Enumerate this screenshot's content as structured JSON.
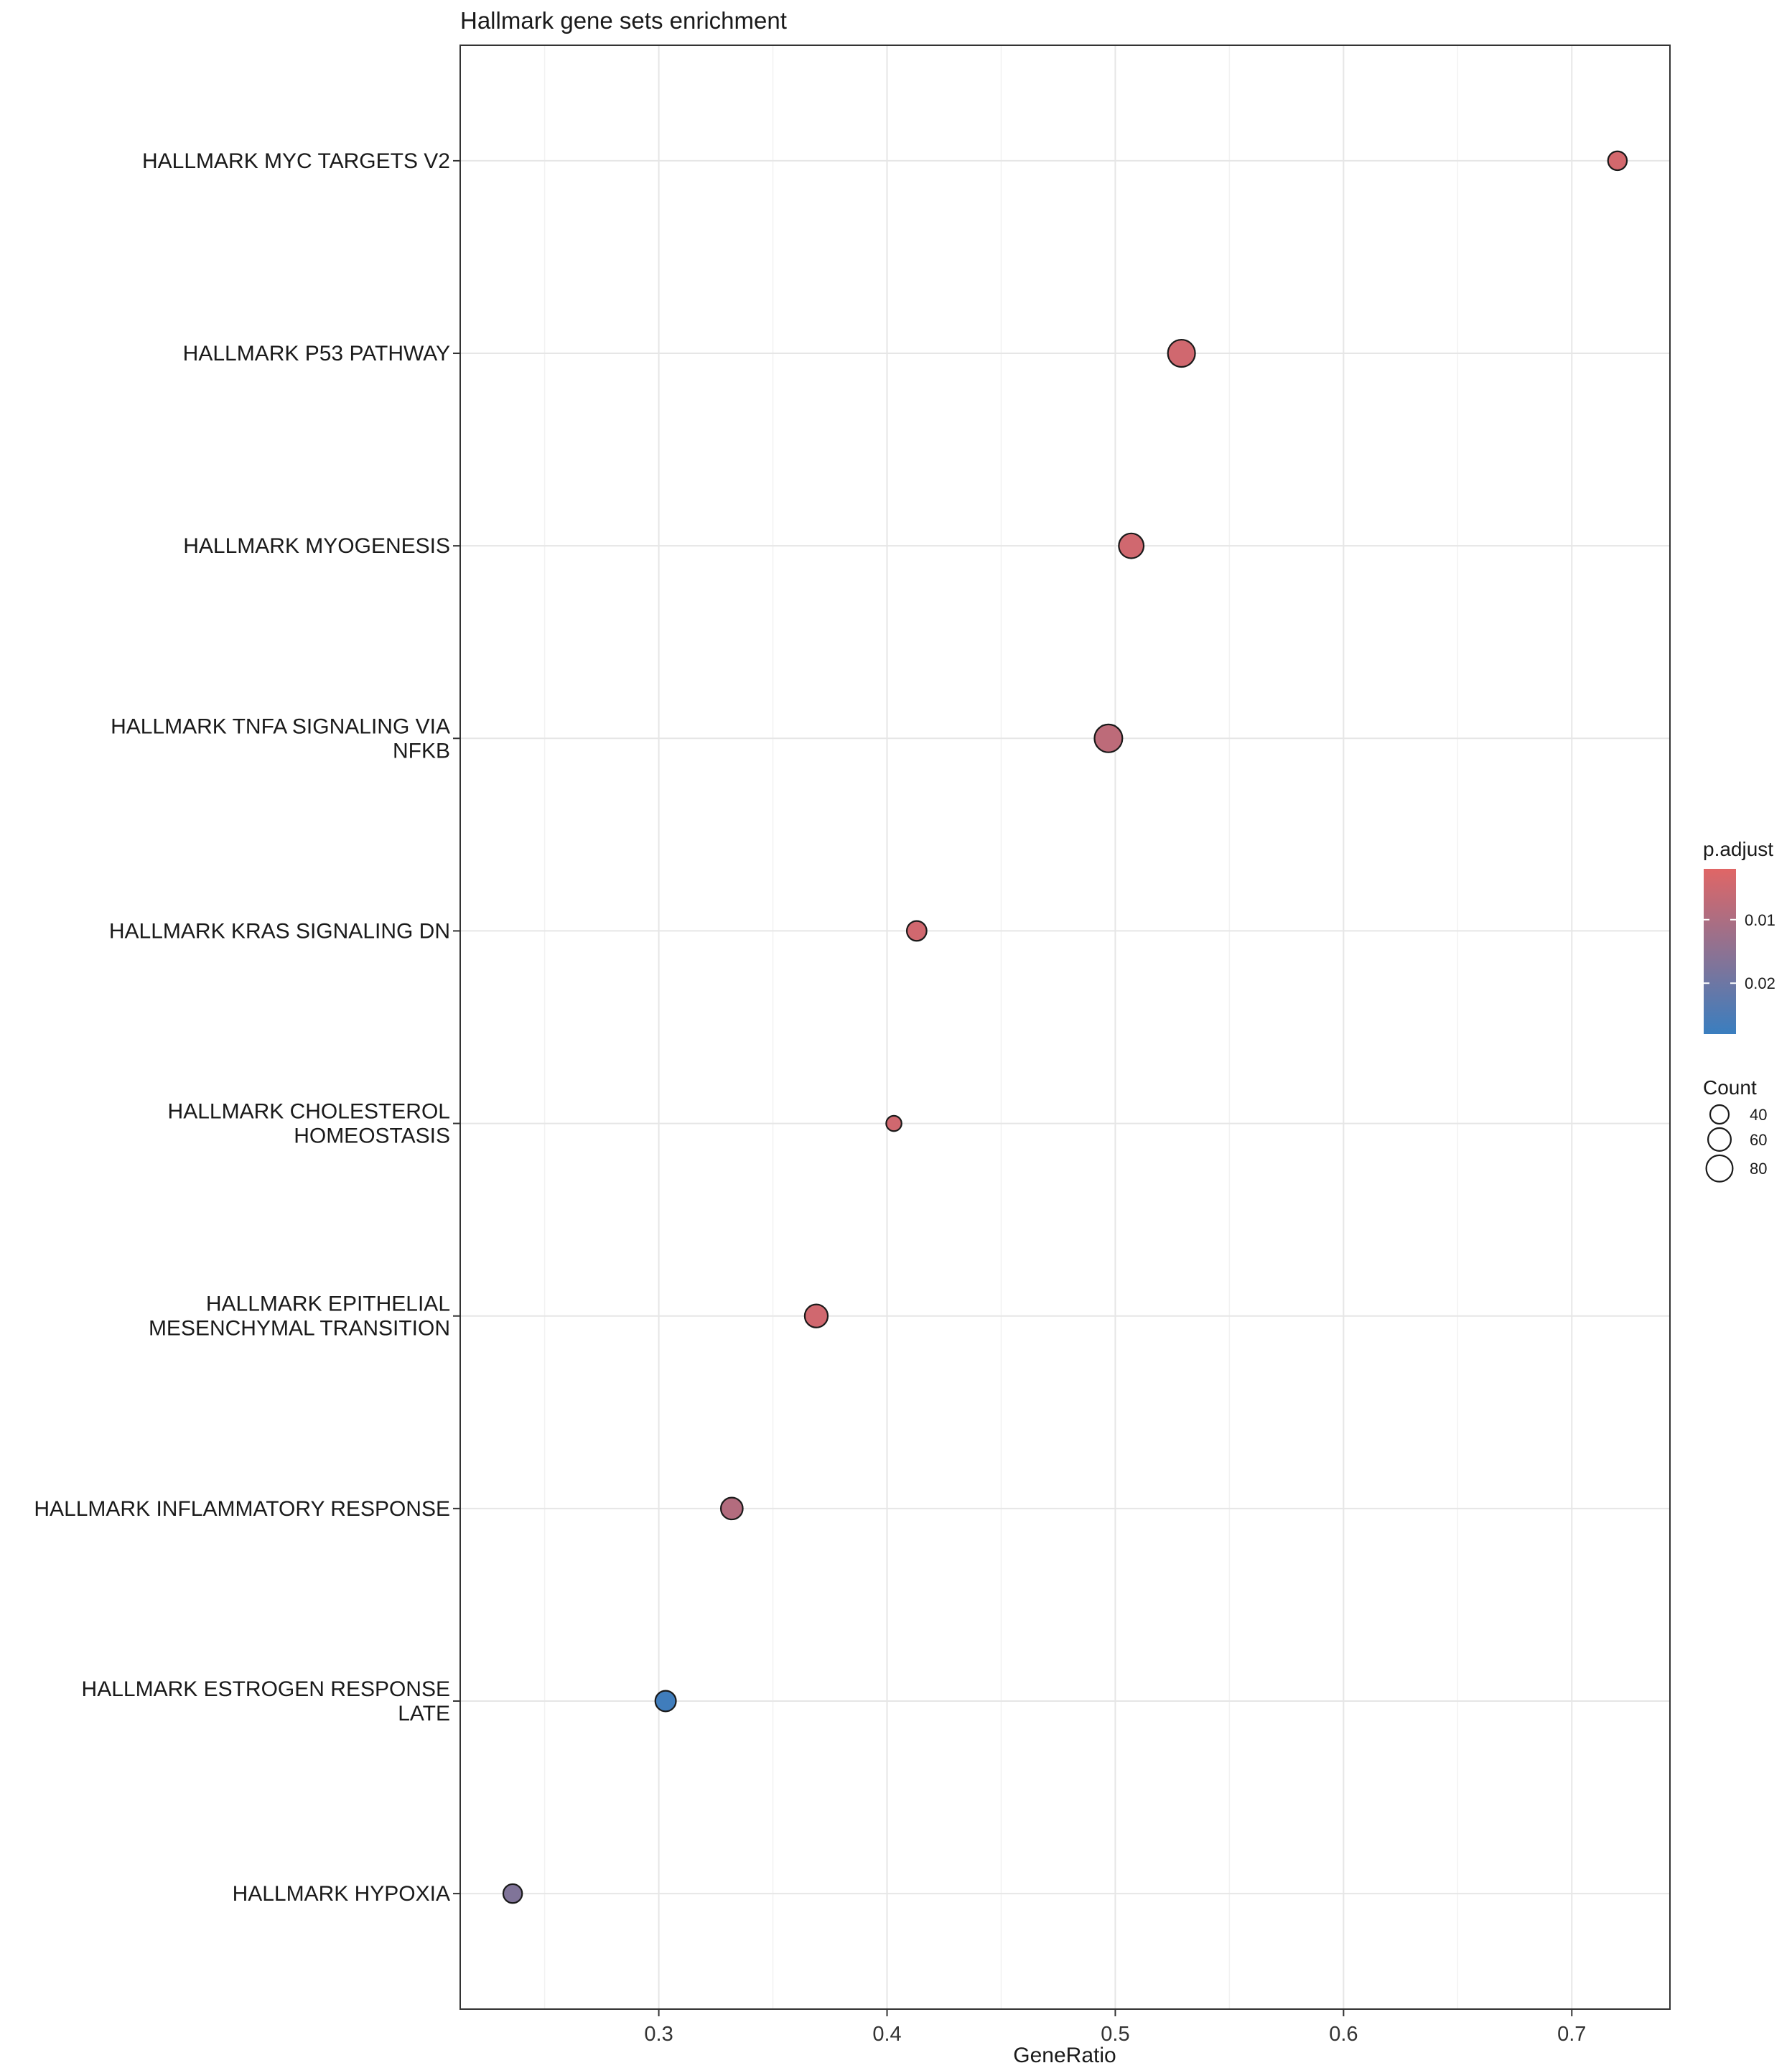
{
  "chart_data": {
    "type": "scatter",
    "title": "Hallmark gene sets enrichment",
    "xlabel": "GeneRatio",
    "ylabel": "",
    "xlim": [
      0.213,
      0.743
    ],
    "xticks": [
      0.3,
      0.4,
      0.5,
      0.6,
      0.7
    ],
    "xtick_labels": [
      "0.3",
      "0.4",
      "0.5",
      "0.6",
      "0.7"
    ],
    "grid": true,
    "points": [
      {
        "term": "HALLMARK MYC TARGETS V2",
        "label_lines": [
          "HALLMARK MYC TARGETS V2"
        ],
        "gene_ratio": 0.72,
        "count": 41,
        "p_adjust": 0.004
      },
      {
        "term": "HALLMARK P53 PATHWAY",
        "label_lines": [
          "HALLMARK P53 PATHWAY"
        ],
        "gene_ratio": 0.529,
        "count": 85,
        "p_adjust": 0.0045
      },
      {
        "term": "HALLMARK MYOGENESIS",
        "label_lines": [
          "HALLMARK MYOGENESIS"
        ],
        "gene_ratio": 0.507,
        "count": 71,
        "p_adjust": 0.0045
      },
      {
        "term": "HALLMARK TNFA SIGNALING VIA NFKB",
        "label_lines": [
          "HALLMARK TNFA SIGNALING VIA",
          "NFKB"
        ],
        "gene_ratio": 0.497,
        "count": 89,
        "p_adjust": 0.0075
      },
      {
        "term": "HALLMARK KRAS SIGNALING DN",
        "label_lines": [
          "HALLMARK KRAS SIGNALING DN"
        ],
        "gene_ratio": 0.413,
        "count": 45,
        "p_adjust": 0.0045
      },
      {
        "term": "HALLMARK CHOLESTEROL HOMEOSTASIS",
        "label_lines": [
          "HALLMARK CHOLESTEROL",
          "HOMEOSTASIS"
        ],
        "gene_ratio": 0.403,
        "count": 27,
        "p_adjust": 0.0045
      },
      {
        "term": "HALLMARK EPITHELIAL MESENCHYMAL TRANSITION",
        "label_lines": [
          "HALLMARK EPITHELIAL",
          "MESENCHYMAL TRANSITION"
        ],
        "gene_ratio": 0.369,
        "count": 61,
        "p_adjust": 0.0045
      },
      {
        "term": "HALLMARK INFLAMMATORY RESPONSE",
        "label_lines": [
          "HALLMARK INFLAMMATORY RESPONSE"
        ],
        "gene_ratio": 0.332,
        "count": 55,
        "p_adjust": 0.009
      },
      {
        "term": "HALLMARK ESTROGEN RESPONSE LATE",
        "label_lines": [
          "HALLMARK ESTROGEN RESPONSE",
          "LATE"
        ],
        "gene_ratio": 0.303,
        "count": 49,
        "p_adjust": 0.027
      },
      {
        "term": "HALLMARK HYPOXIA",
        "label_lines": [
          "HALLMARK HYPOXIA"
        ],
        "gene_ratio": 0.236,
        "count": 41,
        "p_adjust": 0.017
      }
    ],
    "color_legend": {
      "title": "p.adjust",
      "domain": [
        0.002,
        0.028
      ],
      "ticks": [
        0.01,
        0.02
      ],
      "tick_labels": [
        "0.01",
        "0.02"
      ],
      "low_color": "#e06666",
      "high_color": "#3a7ebf"
    },
    "size_legend": {
      "title": "Count",
      "values": [
        40,
        60,
        80
      ],
      "labels": [
        "40",
        "60",
        "80"
      ]
    }
  }
}
